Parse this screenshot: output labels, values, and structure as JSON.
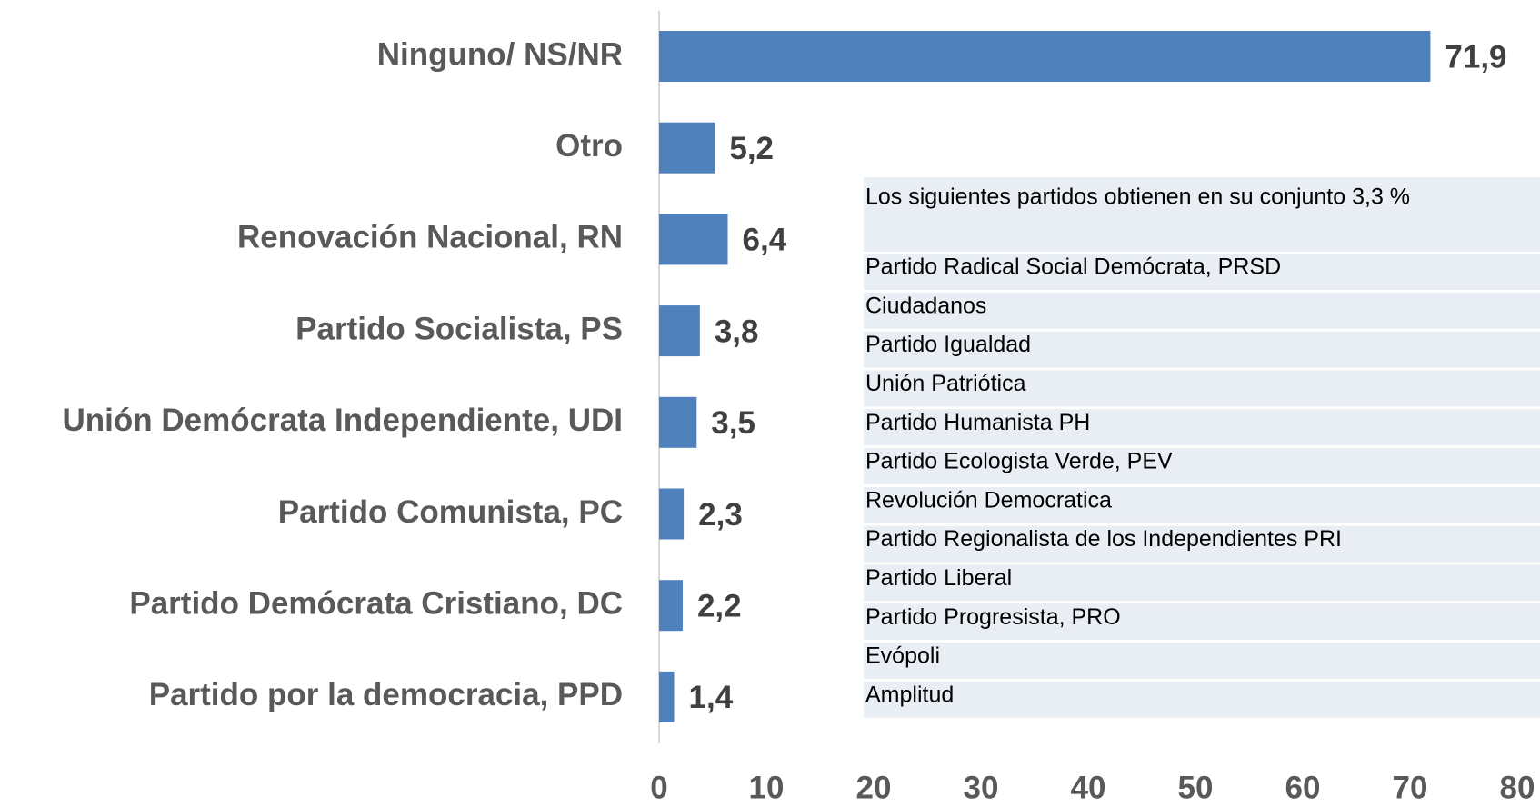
{
  "chart_data": {
    "type": "bar",
    "orientation": "horizontal",
    "categories": [
      "Ninguno/ NS/NR",
      "Otro",
      "Renovación Nacional, RN",
      "Partido Socialista, PS",
      "Unión Demócrata Independiente, UDI",
      "Partido Comunista, PC",
      "Partido Demócrata Cristiano, DC",
      "Partido por la democracia, PPD"
    ],
    "values": [
      71.9,
      5.2,
      6.4,
      3.8,
      3.5,
      2.3,
      2.2,
      1.4
    ],
    "value_labels": [
      "71,9",
      "5,2",
      "6,4",
      "3,8",
      "3,5",
      "2,3",
      "2,2",
      "1,4"
    ],
    "color": "#4f81bd",
    "xlim": [
      0,
      80
    ],
    "xticks": [
      0,
      10,
      20,
      30,
      40,
      50,
      60,
      70,
      80
    ],
    "grid": false,
    "annotation": {
      "title": "Los siguientes partidos obtienen  en su conjunto  3,3 %",
      "items": [
        "Partido Radical Social Demócrata, PRSD",
        "Ciudadanos",
        "Partido Igualdad",
        "Unión Patriótica",
        "Partido Humanista PH",
        "Partido Ecologista Verde, PEV",
        "Revolución Democratica",
        "Partido Regionalista de los Independientes PRI",
        "Partido Liberal",
        "Partido Progresista, PRO",
        "Evópoli",
        "Amplitud"
      ]
    }
  }
}
